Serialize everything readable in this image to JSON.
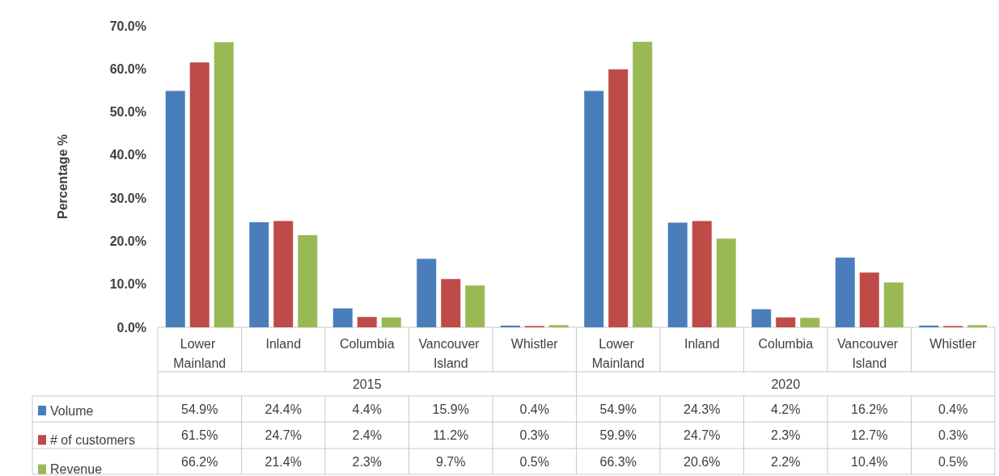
{
  "chart_data": {
    "type": "bar",
    "ylabel": "Percentage %",
    "categories": [
      "Lower Mainland",
      "Inland",
      "Columbia",
      "Vancouver Island",
      "Whistler",
      "Lower Mainland",
      "Inland",
      "Columbia",
      "Vancouver Island",
      "Whistler"
    ],
    "annotations": [
      "2015",
      "2020"
    ],
    "series": [
      {
        "name": "Volume",
        "color": "#4a7ebb",
        "values": [
          54.9,
          24.4,
          4.4,
          15.9,
          0.4,
          54.9,
          24.3,
          4.2,
          16.2,
          0.4
        ],
        "value_labels": [
          "54.9%",
          "24.4%",
          "4.4%",
          "15.9%",
          "0.4%",
          "54.9%",
          "24.3%",
          "4.2%",
          "16.2%",
          "0.4%"
        ]
      },
      {
        "name": "# of customers",
        "color": "#be4b48",
        "values": [
          61.5,
          24.7,
          2.4,
          11.2,
          0.3,
          59.9,
          24.7,
          2.3,
          12.7,
          0.3
        ],
        "value_labels": [
          "61.5%",
          "24.7%",
          "2.4%",
          "11.2%",
          "0.3%",
          "59.9%",
          "24.7%",
          "2.3%",
          "12.7%",
          "0.3%"
        ]
      },
      {
        "name": "Revenue",
        "color": "#98b954",
        "values": [
          66.2,
          21.4,
          2.3,
          9.7,
          0.5,
          66.3,
          20.6,
          2.2,
          10.4,
          0.5
        ],
        "value_labels": [
          "66.2%",
          "21.4%",
          "2.3%",
          "9.7%",
          "0.5%",
          "66.3%",
          "20.6%",
          "2.2%",
          "10.4%",
          "0.5%"
        ]
      }
    ],
    "ylim": [
      0,
      70
    ],
    "yticks": [
      {
        "value": 0,
        "label": "0.0%"
      },
      {
        "value": 10,
        "label": "10.0%"
      },
      {
        "value": 20,
        "label": "20.0%"
      },
      {
        "value": 30,
        "label": "30.0%"
      },
      {
        "value": 40,
        "label": "40.0%"
      },
      {
        "value": 50,
        "label": "50.0%"
      },
      {
        "value": 60,
        "label": "60.0%"
      },
      {
        "value": 70,
        "label": "70.0%"
      }
    ],
    "grid": false,
    "legend": "bottom left"
  }
}
